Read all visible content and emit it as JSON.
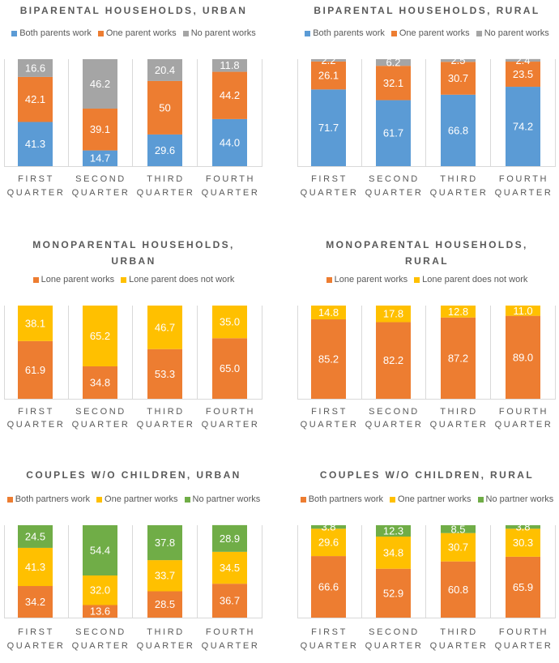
{
  "colors": {
    "blue": "#5B9BD5",
    "orange": "#ED7D31",
    "gray": "#A5A5A5",
    "yellow": "#FFC000",
    "green": "#70AD47"
  },
  "chart_data": [
    {
      "type": "bar",
      "stacked": true,
      "title": [
        "BIPARENTAL HOUSEHOLDS, URBAN"
      ],
      "categories": [
        [
          "FIRST",
          "QUARTER"
        ],
        [
          "SECOND",
          "QUARTER"
        ],
        [
          "THIRD",
          "QUARTER"
        ],
        [
          "FOURTH",
          "QUARTER"
        ]
      ],
      "series": [
        {
          "name": "Both parents work",
          "color": "#5B9BD5",
          "values": [
            "41.3",
            "14.7",
            "29.6",
            "44.0"
          ]
        },
        {
          "name": "One parent works",
          "color": "#ED7D31",
          "values": [
            "42.1",
            "39.1",
            "50",
            "44.2"
          ]
        },
        {
          "name": "No parent works",
          "color": "#A5A5A5",
          "values": [
            "16.6",
            "46.2",
            "20.4",
            "11.8"
          ]
        }
      ],
      "legend": "top",
      "ylim": [
        0,
        100
      ]
    },
    {
      "type": "bar",
      "stacked": true,
      "title": [
        "BIPARENTAL HOUSEHOLDS, RURAL"
      ],
      "categories": [
        [
          "FIRST",
          "QUARTER"
        ],
        [
          "SECOND",
          "QUARTER"
        ],
        [
          "THIRD",
          "QUARTER"
        ],
        [
          "FOURTH",
          "QUARTER"
        ]
      ],
      "series": [
        {
          "name": "Both parents work",
          "color": "#5B9BD5",
          "values": [
            "71.7",
            "61.7",
            "66.8",
            "74.2"
          ]
        },
        {
          "name": "One parent works",
          "color": "#ED7D31",
          "values": [
            "26.1",
            "32.1",
            "30.7",
            "23.5"
          ]
        },
        {
          "name": "No parent works",
          "color": "#A5A5A5",
          "values": [
            "2.2",
            "6.2",
            "2.5",
            "2.4"
          ]
        }
      ],
      "legend": "top",
      "ylim": [
        0,
        100
      ]
    },
    {
      "type": "bar",
      "stacked": true,
      "title": [
        "MONOPARENTAL HOUSEHOLDS,",
        "URBAN"
      ],
      "categories": [
        [
          "FIRST",
          "QUARTER"
        ],
        [
          "SECOND",
          "QUARTER"
        ],
        [
          "THIRD",
          "QUARTER"
        ],
        [
          "FOURTH",
          "QUARTER"
        ]
      ],
      "series": [
        {
          "name": "Lone parent works",
          "color": "#ED7D31",
          "values": [
            "61.9",
            "34.8",
            "53.3",
            "65.0"
          ]
        },
        {
          "name": "Lone parent does not work",
          "color": "#FFC000",
          "values": [
            "38.1",
            "65.2",
            "46.7",
            "35.0"
          ]
        }
      ],
      "legend": "top",
      "ylim": [
        0,
        100
      ]
    },
    {
      "type": "bar",
      "stacked": true,
      "title": [
        "MONOPARENTAL HOUSEHOLDS,",
        "RURAL"
      ],
      "categories": [
        [
          "FIRST",
          "QUARTER"
        ],
        [
          "SECOND",
          "QUARTER"
        ],
        [
          "THIRD",
          "QUARTER"
        ],
        [
          "FOURTH",
          "QUARTER"
        ]
      ],
      "series": [
        {
          "name": "Lone parent works",
          "color": "#ED7D31",
          "values": [
            "85.2",
            "82.2",
            "87.2",
            "89.0"
          ]
        },
        {
          "name": "Lone parent does not work",
          "color": "#FFC000",
          "values": [
            "14.8",
            "17.8",
            "12.8",
            "11.0"
          ]
        }
      ],
      "legend": "top",
      "ylim": [
        0,
        100
      ]
    },
    {
      "type": "bar",
      "stacked": true,
      "title": [
        "COUPLES W/O CHILDREN, URBAN"
      ],
      "categories": [
        [
          "FIRST",
          "QUARTER"
        ],
        [
          "SECOND",
          "QUARTER"
        ],
        [
          "THIRD",
          "QUARTER"
        ],
        [
          "FOURTH",
          "QUARTER"
        ]
      ],
      "series": [
        {
          "name": "Both partners work",
          "color": "#ED7D31",
          "values": [
            "34.2",
            "13.6",
            "28.5",
            "36.7"
          ]
        },
        {
          "name": "One partner works",
          "color": "#FFC000",
          "values": [
            "41.3",
            "32.0",
            "33.7",
            "34.5"
          ]
        },
        {
          "name": "No partner works",
          "color": "#70AD47",
          "values": [
            "24.5",
            "54.4",
            "37.8",
            "28.9"
          ]
        }
      ],
      "legend": "top",
      "ylim": [
        0,
        100
      ]
    },
    {
      "type": "bar",
      "stacked": true,
      "title": [
        "COUPLES W/O CHILDREN, RURAL"
      ],
      "categories": [
        [
          "FIRST",
          "QUARTER"
        ],
        [
          "SECOND",
          "QUARTER"
        ],
        [
          "THIRD",
          "QUARTER"
        ],
        [
          "FOURTH",
          "QUARTER"
        ]
      ],
      "series": [
        {
          "name": "Both partners work",
          "color": "#ED7D31",
          "values": [
            "66.6",
            "52.9",
            "60.8",
            "65.9"
          ]
        },
        {
          "name": "One partner works",
          "color": "#FFC000",
          "values": [
            "29.6",
            "34.8",
            "30.7",
            "30.3"
          ]
        },
        {
          "name": "No partner works",
          "color": "#70AD47",
          "values": [
            "3.8",
            "12.3",
            "8.5",
            "3.8"
          ]
        }
      ],
      "legend": "top",
      "ylim": [
        0,
        100
      ]
    }
  ]
}
